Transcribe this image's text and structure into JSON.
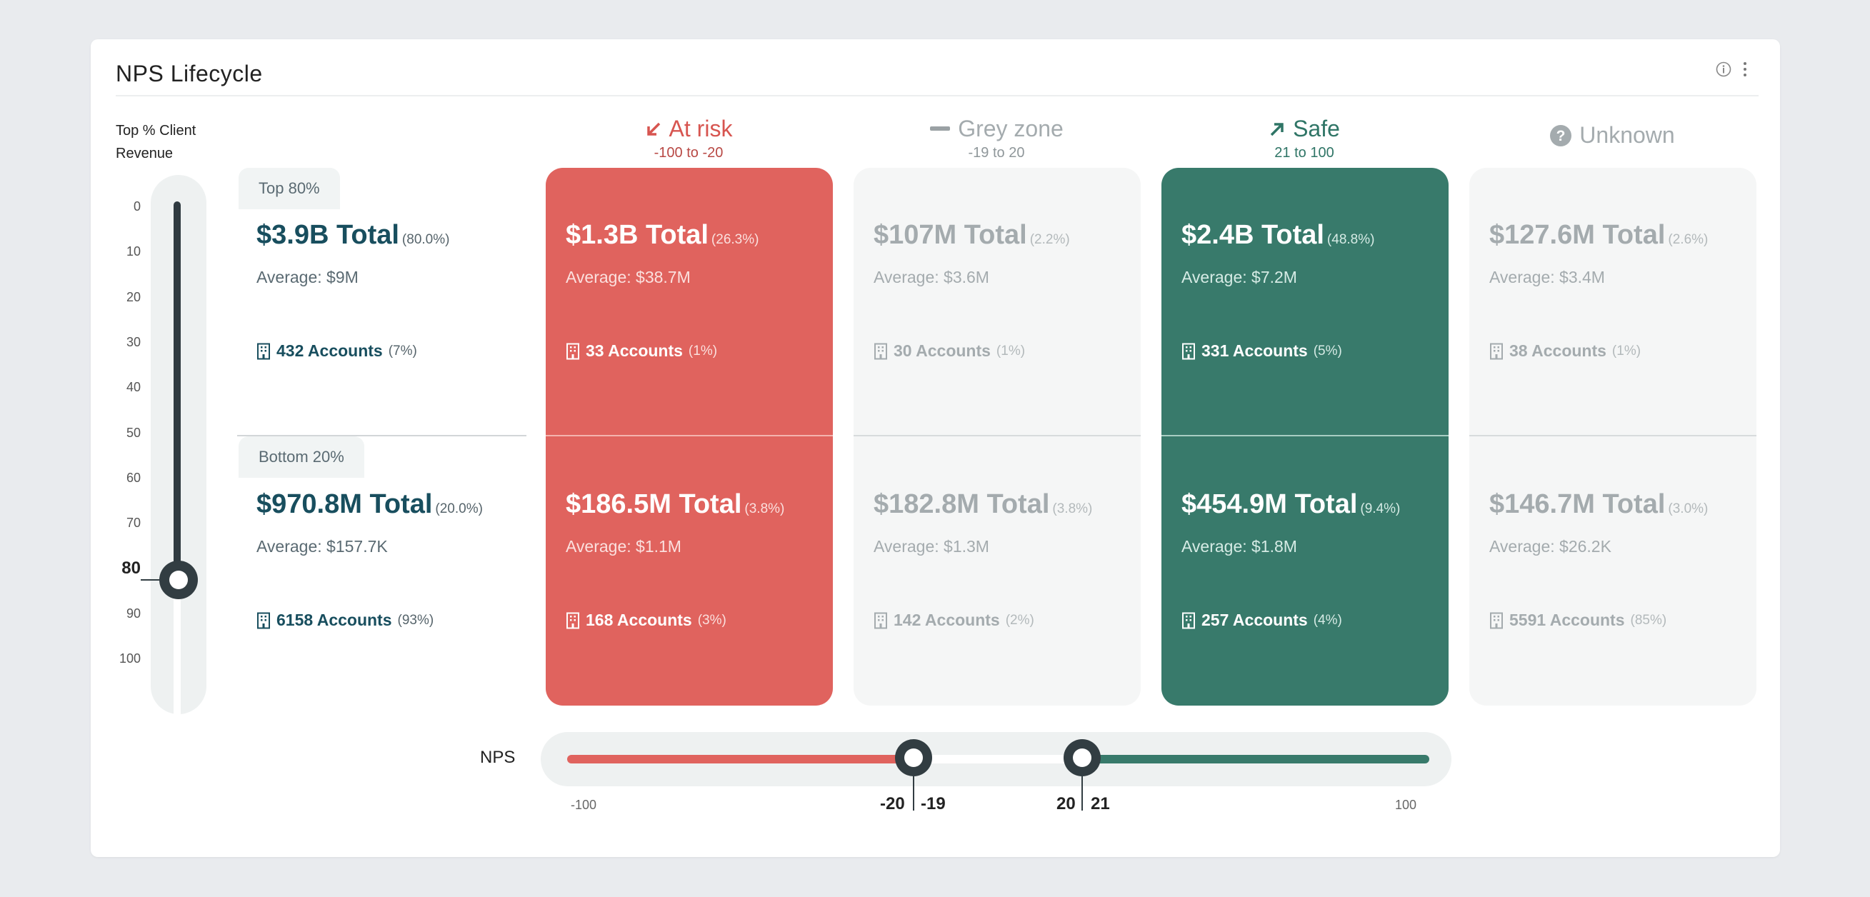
{
  "title": "NPS Lifecycle",
  "header_icons": [
    "info-icon",
    "more-vertical-icon"
  ],
  "y_axis": {
    "label_line1": "Top % Client",
    "label_line2": "Revenue",
    "ticks": [
      "0",
      "10",
      "20",
      "30",
      "40",
      "50",
      "60",
      "70",
      "80",
      "90",
      "100"
    ],
    "selected": 80
  },
  "bands": {
    "top": {
      "label": "Top 80%",
      "total": "$3.9B Total",
      "total_pct": "(80.0%)",
      "average": "Average: $9M",
      "accounts": "432 Accounts",
      "accounts_pct": "(7%)"
    },
    "bottom": {
      "label": "Bottom 20%",
      "total": "$970.8M Total",
      "total_pct": "(20.0%)",
      "average": "Average: $157.7K",
      "accounts": "6158 Accounts",
      "accounts_pct": "(93%)"
    }
  },
  "columns": [
    {
      "title": "At risk",
      "range": "-100 to -20",
      "icon": "arrow-down-left-icon",
      "color": "#e0635e",
      "top": {
        "total": "$1.3B Total",
        "pct": "(26.3%)",
        "average": "Average: $38.7M",
        "accounts": "33 Accounts",
        "accounts_pct": "(1%)"
      },
      "bottom": {
        "total": "$186.5M Total",
        "pct": "(3.8%)",
        "average": "Average: $1.1M",
        "accounts": "168 Accounts",
        "accounts_pct": "(3%)"
      }
    },
    {
      "title": "Grey zone",
      "range": "-19 to 20",
      "icon": "minus-icon",
      "color": "#a4abae",
      "top": {
        "total": "$107M Total",
        "pct": "(2.2%)",
        "average": "Average: $3.6M",
        "accounts": "30 Accounts",
        "accounts_pct": "(1%)"
      },
      "bottom": {
        "total": "$182.8M Total",
        "pct": "(3.8%)",
        "average": "Average: $1.3M",
        "accounts": "142 Accounts",
        "accounts_pct": "(2%)"
      }
    },
    {
      "title": "Safe",
      "range": "21 to 100",
      "icon": "arrow-up-right-icon",
      "color": "#387a6b",
      "top": {
        "total": "$2.4B Total",
        "pct": "(48.8%)",
        "average": "Average: $7.2M",
        "accounts": "331 Accounts",
        "accounts_pct": "(5%)"
      },
      "bottom": {
        "total": "$454.9M Total",
        "pct": "(9.4%)",
        "average": "Average: $1.8M",
        "accounts": "257 Accounts",
        "accounts_pct": "(4%)"
      }
    },
    {
      "title": "Unknown",
      "range": "",
      "icon": "question-circle-icon",
      "color": "#a4abae",
      "top": {
        "total": "$127.6M Total",
        "pct": "(2.6%)",
        "average": "Average: $3.4M",
        "accounts": "38 Accounts",
        "accounts_pct": "(1%)"
      },
      "bottom": {
        "total": "$146.7M Total",
        "pct": "(3.0%)",
        "average": "Average: $26.2K",
        "accounts": "5591 Accounts",
        "accounts_pct": "(85%)"
      }
    }
  ],
  "nps_slider": {
    "label": "NPS",
    "min": "-100",
    "max": "100",
    "low_handle": "-20",
    "low_handle_next": "-19",
    "high_handle": "20",
    "high_handle_next": "21"
  }
}
